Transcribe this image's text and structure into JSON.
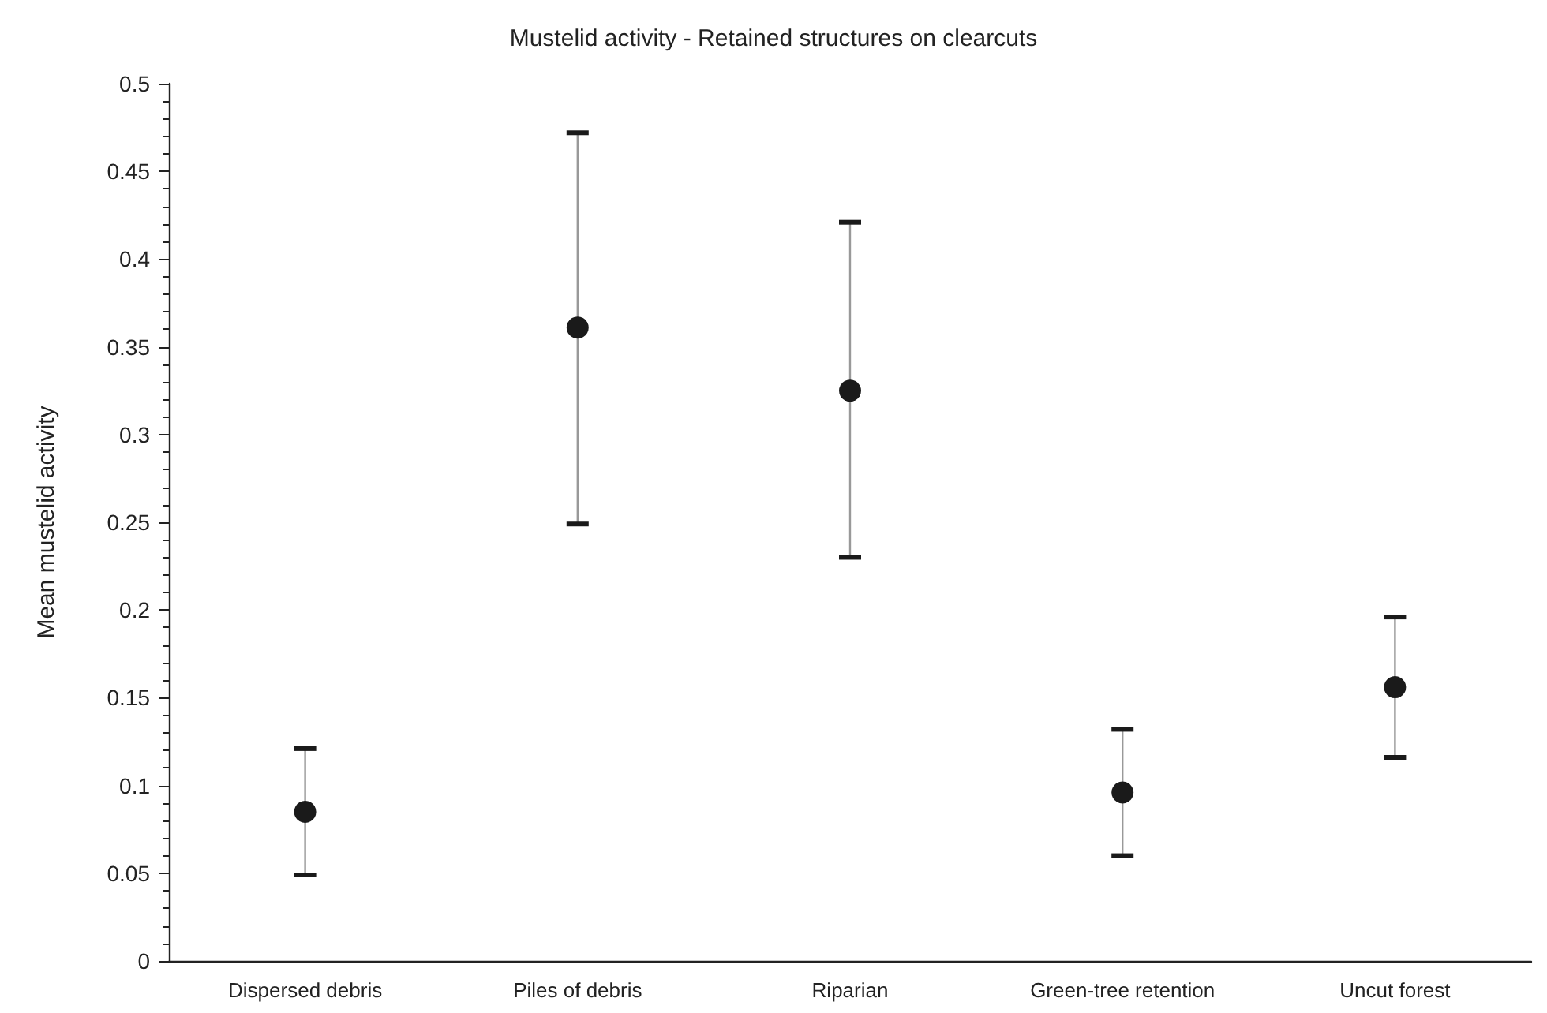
{
  "chart_data": {
    "type": "scatter",
    "title": "Mustelid activity - Retained structures on clearcuts",
    "ylabel": "Mean mustelid activity",
    "categories": [
      "Dispersed debris",
      "Piles of debris",
      "Riparian",
      "Green-tree retention",
      "Uncut forest"
    ],
    "values": [
      0.085,
      0.361,
      0.325,
      0.096,
      0.156
    ],
    "errors": [
      [
        0.049,
        0.121
      ],
      [
        0.249,
        0.472
      ],
      [
        0.23,
        0.421
      ],
      [
        0.06,
        0.132
      ],
      [
        0.116,
        0.196
      ]
    ],
    "color": "#1a1a1a",
    "ylim": [
      0,
      0.5
    ],
    "yticks": [
      0,
      0.05,
      0.1,
      0.15,
      0.2,
      0.25,
      0.3,
      0.35,
      0.4,
      0.45,
      0.5
    ],
    "grid": false,
    "marker": "circle"
  }
}
